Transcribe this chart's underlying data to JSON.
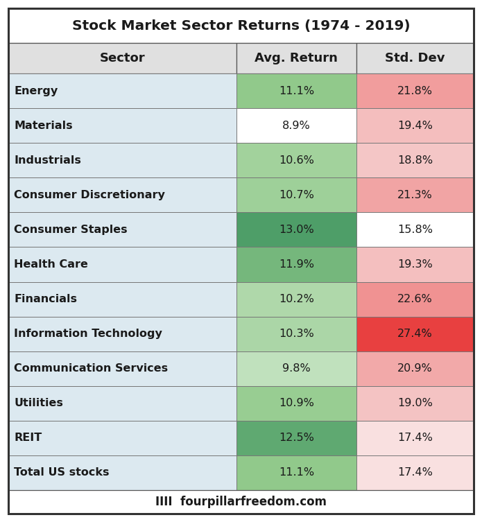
{
  "title": "Stock Market Sector Returns (1974 - 2019)",
  "headers": [
    "Sector",
    "Avg. Return",
    "Std. Dev"
  ],
  "sectors": [
    "Energy",
    "Materials",
    "Industrials",
    "Consumer Discretionary",
    "Consumer Staples",
    "Health Care",
    "Financials",
    "Information Technology",
    "Communication Services",
    "Utilities",
    "REIT",
    "Total US stocks"
  ],
  "avg_returns": [
    "11.1%",
    "8.9%",
    "10.6%",
    "10.7%",
    "13.0%",
    "11.9%",
    "10.2%",
    "10.3%",
    "9.8%",
    "10.9%",
    "12.5%",
    "11.1%"
  ],
  "avg_return_vals": [
    11.1,
    8.9,
    10.6,
    10.7,
    13.0,
    11.9,
    10.2,
    10.3,
    9.8,
    10.9,
    12.5,
    11.1
  ],
  "std_devs": [
    "21.8%",
    "19.4%",
    "18.8%",
    "21.3%",
    "15.8%",
    "19.3%",
    "22.6%",
    "27.4%",
    "20.9%",
    "19.0%",
    "17.4%",
    "17.4%"
  ],
  "std_dev_vals": [
    21.8,
    19.4,
    18.8,
    21.3,
    15.8,
    19.3,
    22.6,
    27.4,
    20.9,
    19.0,
    17.4,
    17.4
  ],
  "footer": "IIII  fourpillarfreedom.com",
  "sector_bg": "#dce9f0",
  "header_bg": "#e0e0e0",
  "title_bg": "#ffffff",
  "green_low": "#b8ddb4",
  "green_mid": "#90c98a",
  "green_high": "#4e9e68",
  "red_low": "#f5c8c8",
  "red_mid": "#f09090",
  "red_high": "#e84040"
}
